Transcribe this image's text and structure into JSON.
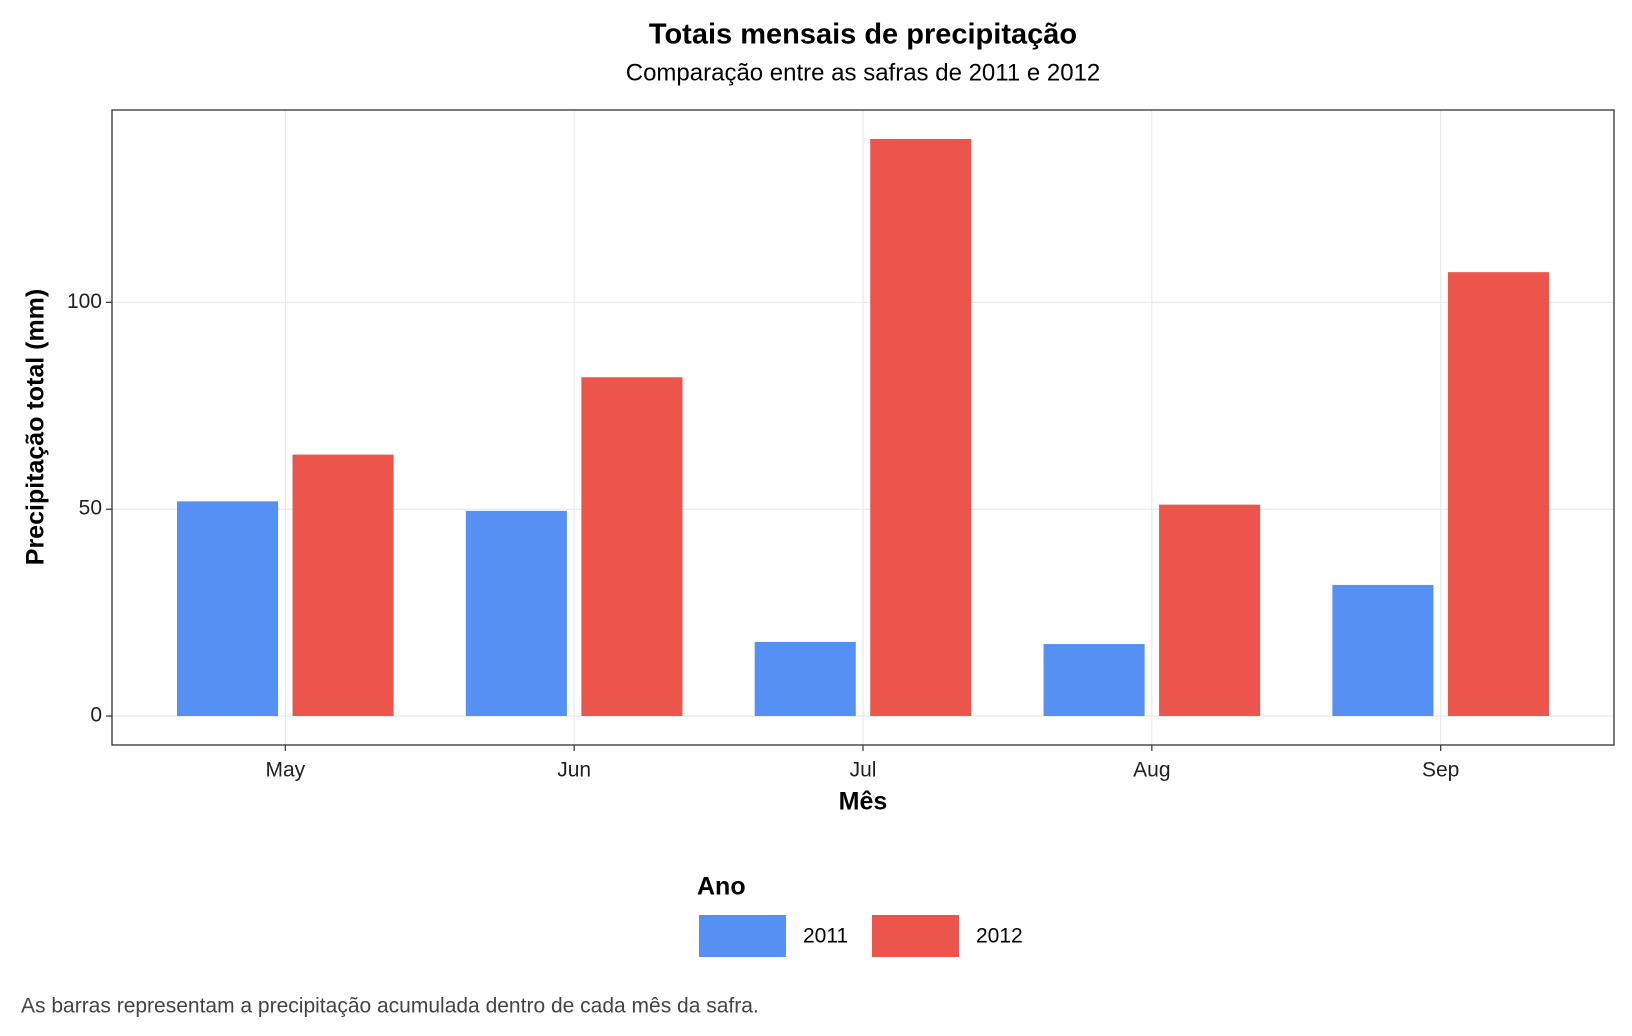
{
  "chart_data": {
    "type": "bar",
    "title": "Totais mensais de precipitação",
    "subtitle": "Comparação entre as safras de 2011 e 2012",
    "x_label": "Mês",
    "y_label": "Precipitação total (mm)",
    "caption": "As barras representam a precipitação acumulada dentro de cada mês da safra.",
    "legend_title": "Ano",
    "legend_position": "bottom",
    "categories": [
      "May",
      "Jun",
      "Jul",
      "Aug",
      "Sep"
    ],
    "series": [
      {
        "name": "2011",
        "color": "#5590f2",
        "values": [
          51.9,
          49.6,
          17.9,
          17.4,
          31.7
        ]
      },
      {
        "name": "2012",
        "color": "#ec554b",
        "values": [
          63.2,
          81.9,
          139.5,
          51.1,
          107.3
        ]
      }
    ],
    "ylim": [
      -7,
      146.5
    ],
    "yticks": [
      0,
      50,
      100
    ],
    "grid": true
  }
}
